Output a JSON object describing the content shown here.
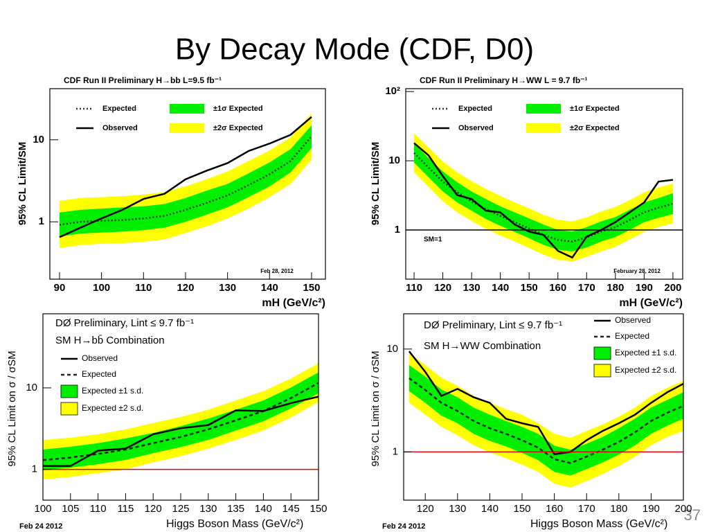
{
  "title": "By Decay Mode (CDF, D0)",
  "page_number": "37",
  "chart_data": [
    {
      "type": "line",
      "title": "CDF Run II Preliminary   H→bb   L=9.5 fb⁻¹",
      "x_label": "mH (GeV/c²)",
      "y_label": "95% CL Limit/SM",
      "log_y": true,
      "xlim": [
        87.7,
        153.3
      ],
      "xticks": [
        90,
        100,
        110,
        120,
        130,
        140,
        150
      ],
      "ylim": [
        0.2,
        42
      ],
      "yticks": [
        1,
        10
      ],
      "annotations": [
        "Feb 28, 2012"
      ],
      "x": [
        90,
        95,
        100,
        105,
        110,
        115,
        120,
        125,
        130,
        135,
        140,
        145,
        150
      ],
      "series": [
        {
          "name": "±2σ Expected",
          "color": "#ffff00",
          "low": [
            0.48,
            0.52,
            0.54,
            0.55,
            0.57,
            0.61,
            0.73,
            0.88,
            1.1,
            1.45,
            2.0,
            2.9,
            5.7
          ],
          "high": [
            1.8,
            1.95,
            2.0,
            2.05,
            2.15,
            2.3,
            2.7,
            3.3,
            4.1,
            5.5,
            7.4,
            10.7,
            21
          ]
        },
        {
          "name": "±1σ Expected",
          "color": "#00ee00",
          "low": [
            0.66,
            0.72,
            0.74,
            0.76,
            0.79,
            0.85,
            1.0,
            1.22,
            1.5,
            2.0,
            2.7,
            4.0,
            7.9
          ],
          "high": [
            1.3,
            1.4,
            1.45,
            1.5,
            1.55,
            1.65,
            1.95,
            2.4,
            2.9,
            3.9,
            5.3,
            7.7,
            15
          ]
        },
        {
          "name": "Expected",
          "color": "#333333",
          "dash": true,
          "values": [
            0.92,
            1.0,
            1.03,
            1.05,
            1.1,
            1.18,
            1.4,
            1.7,
            2.1,
            2.8,
            3.8,
            5.5,
            11
          ]
        },
        {
          "name": "Observed",
          "color": "#000000",
          "values": [
            0.65,
            0.85,
            1.1,
            1.4,
            1.9,
            2.2,
            3.3,
            4.2,
            5.2,
            7.3,
            9.0,
            11.5,
            19
          ]
        }
      ]
    },
    {
      "type": "line",
      "title": "CDF Run II Preliminary   H→WW   L = 9.7 fb⁻¹",
      "x_label": "mH (GeV/c²)",
      "y_label": "95% CL Limit/SM",
      "log_y": true,
      "xlim": [
        107.1,
        203.4
      ],
      "xticks": [
        110,
        120,
        130,
        140,
        150,
        160,
        170,
        180,
        190,
        200
      ],
      "ylim": [
        0.195,
        110
      ],
      "yticks": [
        1,
        10,
        {
          "value": 100,
          "label": "10²"
        }
      ],
      "hline": {
        "value": 1,
        "color": "#000000",
        "label": "SM=1"
      },
      "annotations": [
        "February 28, 2012"
      ],
      "x": [
        110,
        115,
        120,
        125,
        130,
        135,
        140,
        145,
        150,
        155,
        160,
        165,
        170,
        175,
        180,
        185,
        190,
        195,
        200
      ],
      "series": [
        {
          "name": "±2σ Expected",
          "color": "#ffff00",
          "low": [
            6.8,
            4.2,
            2.6,
            1.8,
            1.35,
            1.04,
            0.83,
            0.68,
            0.55,
            0.44,
            0.37,
            0.35,
            0.41,
            0.49,
            0.57,
            0.73,
            0.94,
            1.1,
            1.25
          ],
          "high": [
            25,
            15.6,
            9.8,
            6.8,
            5.1,
            3.9,
            3.1,
            2.5,
            2.05,
            1.66,
            1.4,
            1.33,
            1.52,
            1.85,
            2.15,
            2.7,
            3.5,
            4.1,
            4.7
          ]
        },
        {
          "name": "±1σ Expected",
          "color": "#00ee00",
          "low": [
            9.4,
            5.8,
            3.6,
            2.5,
            1.9,
            1.44,
            1.15,
            0.94,
            0.76,
            0.61,
            0.52,
            0.49,
            0.56,
            0.68,
            0.79,
            1.0,
            1.3,
            1.5,
            1.7
          ],
          "high": [
            18,
            11,
            7,
            4.9,
            3.6,
            2.8,
            2.2,
            1.8,
            1.47,
            1.2,
            1.0,
            0.95,
            1.1,
            1.33,
            1.54,
            1.96,
            2.5,
            2.9,
            3.4
          ]
        },
        {
          "name": "Expected",
          "color": "#333333",
          "dash": true,
          "values": [
            13,
            8,
            5,
            3.5,
            2.6,
            2.0,
            1.6,
            1.3,
            1.05,
            0.85,
            0.72,
            0.68,
            0.78,
            0.95,
            1.1,
            1.4,
            1.8,
            2.1,
            2.4
          ]
        },
        {
          "name": "Observed",
          "color": "#000000",
          "values": [
            18,
            12,
            6,
            3.2,
            2.8,
            1.9,
            1.8,
            1.2,
            0.95,
            0.85,
            0.5,
            0.4,
            0.8,
            1.0,
            1.3,
            1.8,
            2.5,
            5.0,
            5.3
          ]
        }
      ]
    },
    {
      "type": "line",
      "title": "DØ Preliminary, Lint ≤ 9.7 fb⁻¹",
      "subtitle": "SM H→bb̄ Combination",
      "x_label": "Higgs Boson Mass (GeV/c²)",
      "y_label": "95% CL Limit on σ / σSM",
      "log_y": true,
      "xlim": [
        100,
        150
      ],
      "xticks": [
        100,
        105,
        110,
        115,
        120,
        125,
        130,
        135,
        140,
        145,
        150
      ],
      "ylim": [
        0.42,
        81
      ],
      "yticks": [
        1,
        10
      ],
      "hline": {
        "value": 1,
        "color": "#dd0000"
      },
      "annotations": [
        "Feb 24 2012"
      ],
      "x": [
        100,
        105,
        110,
        115,
        120,
        125,
        130,
        135,
        140,
        145,
        150
      ],
      "series": [
        {
          "name": "Expected ±2 s.d.",
          "color": "#ffff00",
          "low": [
            0.75,
            0.81,
            0.9,
            1.0,
            1.22,
            1.45,
            1.8,
            2.3,
            3.0,
            4.35,
            6.7
          ],
          "high": [
            2.3,
            2.45,
            2.7,
            3.1,
            3.7,
            4.4,
            5.4,
            7.0,
            9.1,
            13,
            20
          ]
        },
        {
          "name": "Expected ±1 s.d.",
          "color": "#00ee00",
          "low": [
            0.98,
            1.05,
            1.16,
            1.31,
            1.58,
            1.88,
            2.3,
            3.0,
            3.9,
            5.6,
            8.6
          ],
          "high": [
            1.75,
            1.9,
            2.1,
            2.4,
            2.8,
            3.4,
            4.2,
            5.4,
            7.0,
            10.1,
            15.5
          ]
        },
        {
          "name": "Expected",
          "color": "#222222",
          "dash": true,
          "values": [
            1.3,
            1.4,
            1.55,
            1.75,
            2.1,
            2.5,
            3.1,
            4.0,
            5.2,
            7.5,
            11.5
          ]
        },
        {
          "name": "Observed",
          "color": "#000000",
          "values": [
            1.1,
            1.1,
            1.7,
            1.8,
            2.7,
            3.2,
            3.5,
            5.3,
            5.2,
            6.5,
            7.8
          ]
        }
      ]
    },
    {
      "type": "line",
      "title": "DØ Preliminary, Lint ≤ 9.7 fb⁻¹",
      "subtitle": "SM H→WW Combination",
      "x_label": "Higgs Boson Mass (GeV/c²)",
      "y_label": "95% CL Limit on σ / σSM",
      "log_y": true,
      "xlim": [
        113.3,
        200
      ],
      "xticks": [
        120,
        130,
        140,
        150,
        160,
        170,
        180,
        190,
        200
      ],
      "ylim": [
        0.34,
        22
      ],
      "yticks": [
        1,
        10
      ],
      "hline": {
        "value": 1,
        "color": "#dd0000"
      },
      "annotations": [
        "Feb 24 2012"
      ],
      "x": [
        115,
        120,
        125,
        130,
        135,
        140,
        145,
        150,
        155,
        160,
        165,
        170,
        175,
        180,
        185,
        190,
        195,
        200
      ],
      "series": [
        {
          "name": "Expected ±2 s.d.",
          "color": "#ffff00",
          "low": [
            3.0,
            2.3,
            1.75,
            1.45,
            1.16,
            0.99,
            0.87,
            0.75,
            0.64,
            0.49,
            0.45,
            0.52,
            0.61,
            0.73,
            0.9,
            1.16,
            1.4,
            1.6
          ],
          "high": [
            9.1,
            7.0,
            5.25,
            4.4,
            3.5,
            3.0,
            2.6,
            2.3,
            1.9,
            1.5,
            1.37,
            1.6,
            1.85,
            2.2,
            2.7,
            3.5,
            4.2,
            4.9
          ]
        },
        {
          "name": "Expected ±1 s.d.",
          "color": "#00ee00",
          "low": [
            3.9,
            3.0,
            2.25,
            1.9,
            1.5,
            1.28,
            1.13,
            0.98,
            0.83,
            0.64,
            0.59,
            0.68,
            0.79,
            0.94,
            1.16,
            1.5,
            1.8,
            2.1
          ],
          "high": [
            7.0,
            5.4,
            4.05,
            3.4,
            2.7,
            2.3,
            2.0,
            1.75,
            1.5,
            1.15,
            1.05,
            1.2,
            1.4,
            1.7,
            2.1,
            2.7,
            3.2,
            3.8
          ]
        },
        {
          "name": "Expected",
          "color": "#222222",
          "dash": true,
          "values": [
            5.2,
            4.0,
            3.0,
            2.5,
            2.0,
            1.7,
            1.5,
            1.3,
            1.1,
            0.85,
            0.78,
            0.9,
            1.05,
            1.25,
            1.55,
            2.0,
            2.4,
            2.8
          ]
        },
        {
          "name": "Observed",
          "color": "#000000",
          "values": [
            9.5,
            6,
            3.5,
            4.1,
            3.4,
            3.0,
            2.1,
            1.9,
            1.75,
            0.95,
            1.0,
            1.3,
            1.6,
            1.9,
            2.3,
            3.0,
            3.8,
            4.6
          ]
        }
      ]
    }
  ]
}
